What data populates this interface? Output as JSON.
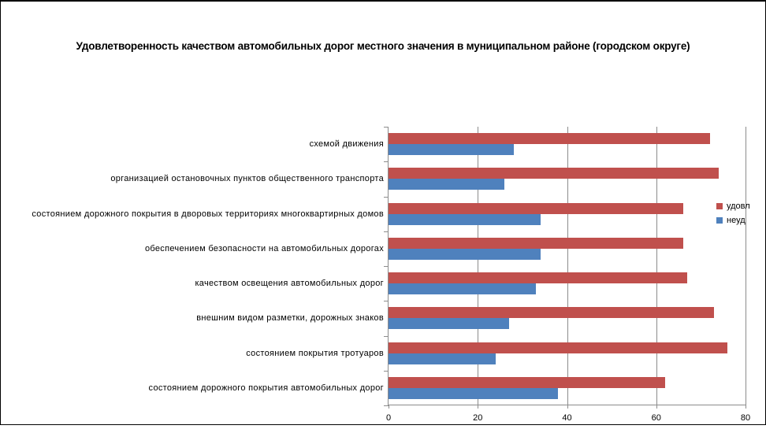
{
  "chart_data": {
    "type": "bar",
    "orientation": "horizontal",
    "title": "Удовлетворенность качеством автомобильных дорог местного значения в муниципальном районе (городском округе)",
    "categories": [
      "схемой движения",
      "организацией остановочных пунктов общественного транспорта",
      "состоянием дорожного покрытия в дворовых территориях многоквартирных домов",
      "обеспечением безопасности на автомобильных дорогах",
      "качеством освещения автомобильных дорог",
      "внешним видом разметки, дорожных знаков",
      "состоянием покрытия тротуаров",
      "состоянием дорожного покрытия автомобильных дорог"
    ],
    "series": [
      {
        "name": "удовл",
        "color": "#C0504D",
        "values": [
          72,
          74,
          66,
          66,
          67,
          73,
          76,
          62
        ]
      },
      {
        "name": "неуд",
        "color": "#4F81BD",
        "values": [
          28,
          26,
          34,
          34,
          33,
          27,
          24,
          38
        ]
      }
    ],
    "xlim": [
      0,
      80
    ],
    "x_ticks": [
      0,
      20,
      40,
      60,
      80
    ],
    "grid": "vertical",
    "legend_position": "right",
    "gridline_color": "#8C8C8C",
    "frame_border_color": "#000000",
    "background_color": "#FFFFFF"
  }
}
